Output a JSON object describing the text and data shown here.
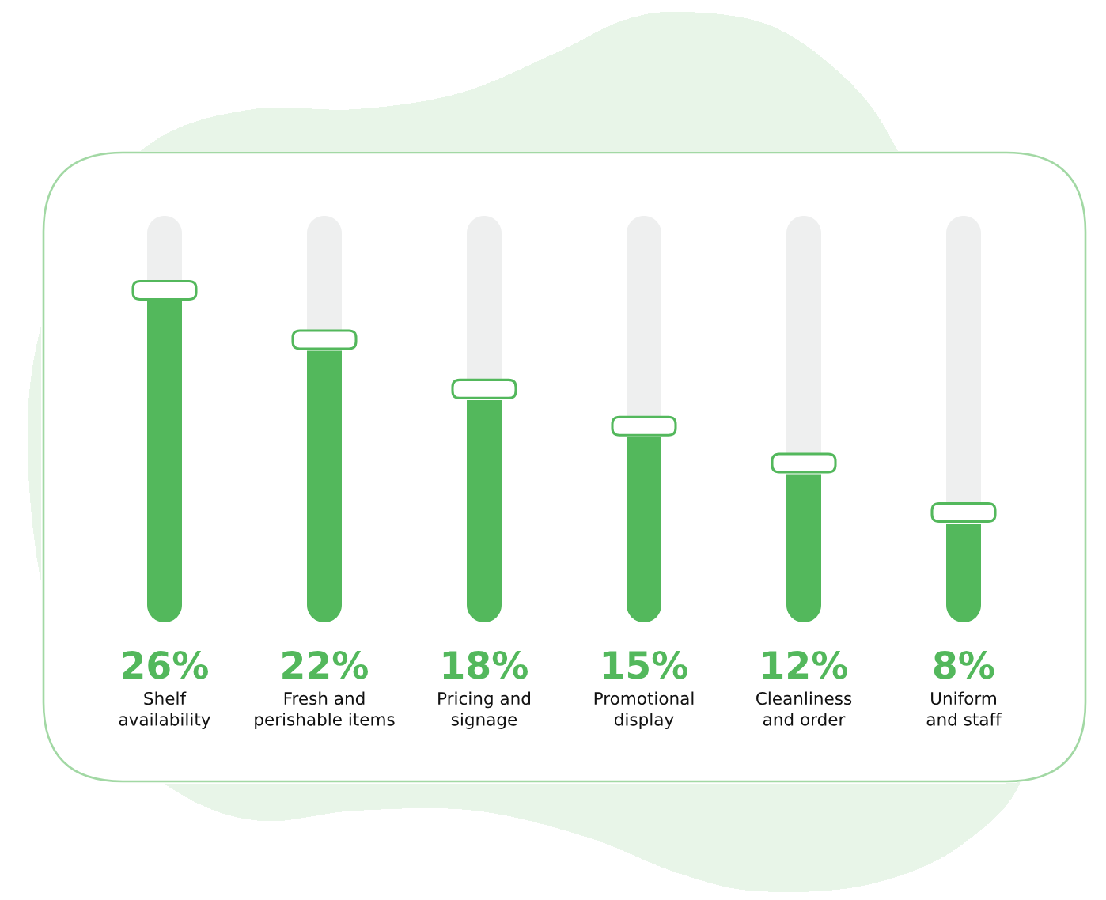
{
  "chart_data": {
    "type": "bar",
    "categories": [
      "Shelf\navailability",
      "Fresh and\nperishable items",
      "Pricing and\nsignage",
      "Promotional\ndisplay",
      "Cleanliness\nand order",
      "Uniform\nand staff"
    ],
    "values": [
      26,
      22,
      18,
      15,
      12,
      8
    ],
    "value_labels": [
      "26%",
      "22%",
      "18%",
      "15%",
      "12%",
      "8%"
    ],
    "color": "#53b85c"
  }
}
